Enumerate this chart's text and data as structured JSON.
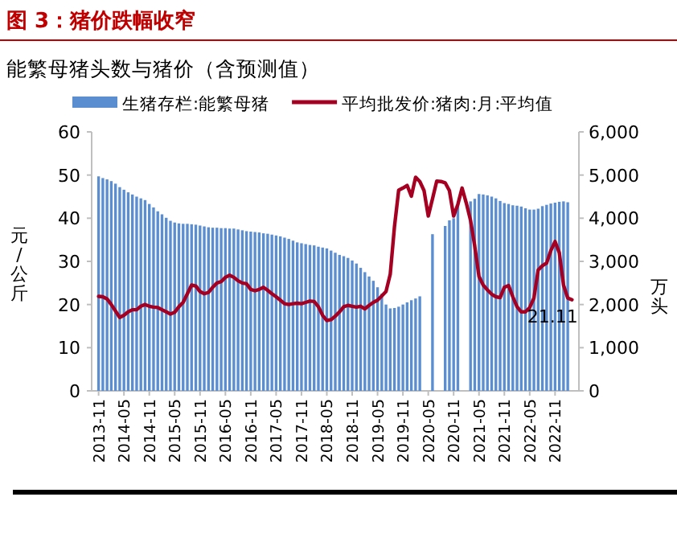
{
  "chart_data": {
    "type": "bar",
    "title": "图 3：猪价跌幅收窄",
    "subtitle": "能繁母猪头数与猪价（含预测值）",
    "ylabel": "元/公斤",
    "y2label": "万头",
    "legend": "top",
    "categories": [
      "2013-11",
      null,
      null,
      null,
      null,
      null,
      "2014-05",
      null,
      null,
      null,
      null,
      null,
      "2014-11",
      null,
      null,
      null,
      null,
      null,
      "2015-05",
      null,
      null,
      null,
      null,
      null,
      "2015-11",
      null,
      null,
      null,
      null,
      null,
      "2016-05",
      null,
      null,
      null,
      null,
      null,
      "2016-11",
      null,
      null,
      null,
      null,
      null,
      "2017-05",
      null,
      null,
      null,
      null,
      null,
      "2017-11",
      null,
      null,
      null,
      null,
      null,
      "2018-05",
      null,
      null,
      null,
      null,
      null,
      "2018-11",
      null,
      null,
      null,
      null,
      null,
      "2019-05",
      null,
      null,
      null,
      null,
      null,
      "2019-11",
      null,
      null,
      null,
      null,
      null,
      "2020-05",
      null,
      null,
      null,
      null,
      null,
      "2020-11",
      null,
      null,
      null,
      null,
      null,
      "2021-05",
      null,
      null,
      null,
      null,
      null,
      "2021-11",
      null,
      null,
      null,
      null,
      null,
      "2022-05",
      null,
      null,
      null,
      null,
      null,
      "2022-11",
      null,
      null,
      null,
      null
    ],
    "ylim": [
      0,
      60
    ],
    "yticks": [
      0,
      10,
      20,
      30,
      40,
      50,
      60
    ],
    "y2lim": [
      0,
      6000
    ],
    "y2ticks": [
      0,
      {
        "value": 1000,
        "label": "1,000"
      },
      {
        "value": 2000,
        "label": "2,000"
      },
      {
        "value": 3000,
        "label": "3,000"
      },
      {
        "value": 4000,
        "label": "4,000"
      },
      {
        "value": 5000,
        "label": "5,000"
      },
      {
        "value": 6000,
        "label": "6,000"
      }
    ],
    "series": [
      {
        "name": "生猪存栏:能繁母猪",
        "axis": "y2",
        "color": "#5b8ed0",
        "values": [
          4970,
          4930,
          4900,
          4860,
          4800,
          4720,
          4660,
          4600,
          4550,
          4500,
          4460,
          4420,
          4330,
          4250,
          4160,
          4090,
          4010,
          3940,
          3900,
          3880,
          3870,
          3870,
          3860,
          3850,
          3830,
          3810,
          3790,
          3780,
          3780,
          3770,
          3770,
          3760,
          3760,
          3740,
          3720,
          3700,
          3690,
          3680,
          3670,
          3650,
          3640,
          3620,
          3600,
          3580,
          3550,
          3520,
          3480,
          3440,
          3420,
          3400,
          3380,
          3370,
          3340,
          3320,
          3300,
          3250,
          3200,
          3150,
          3120,
          3080,
          3020,
          2950,
          2850,
          2750,
          2650,
          2550,
          2400,
          2250,
          2000,
          1910,
          1920,
          1950,
          2000,
          2050,
          2100,
          2140,
          2190,
          null,
          null,
          3630,
          null,
          null,
          3820,
          3950,
          4000,
          4300,
          null,
          null,
          4390,
          4450,
          4560,
          4550,
          4530,
          4500,
          4460,
          4400,
          4350,
          4330,
          4300,
          4290,
          4270,
          4230,
          4200,
          4200,
          4220,
          4280,
          4310,
          4340,
          4360,
          4380,
          4390,
          4370,
          null
        ]
      },
      {
        "name": "平均批发价:猪肉:月:平均值",
        "type": "line",
        "color": "#a50021",
        "values": [
          21.9,
          21.8,
          21.3,
          20.0,
          18.5,
          17.0,
          17.5,
          18.3,
          18.8,
          18.8,
          19.6,
          20.0,
          19.6,
          19.4,
          19.3,
          18.8,
          18.3,
          17.8,
          18.2,
          19.5,
          20.5,
          22.5,
          24.5,
          24.3,
          23.0,
          22.5,
          22.8,
          24.0,
          25.0,
          25.3,
          26.3,
          26.8,
          26.3,
          25.5,
          25.0,
          24.8,
          23.5,
          23.2,
          23.5,
          24.0,
          23.3,
          22.5,
          21.8,
          21.0,
          20.2,
          20.0,
          20.2,
          20.3,
          20.2,
          20.5,
          20.8,
          20.7,
          19.5,
          17.5,
          16.3,
          16.5,
          17.3,
          18.3,
          19.5,
          19.8,
          19.6,
          19.4,
          19.6,
          19.0,
          19.8,
          20.5,
          21.0,
          22.0,
          23.0,
          27.0,
          38.0,
          46.5,
          47.0,
          47.6,
          45.1,
          49.5,
          48.5,
          46.4,
          40.5,
          44.5,
          48.6,
          48.5,
          48.2,
          46.4,
          40.5,
          43.2,
          47.0,
          43.5,
          39.5,
          33.5,
          26.5,
          24.5,
          23.4,
          22.4,
          21.8,
          21.6,
          24.0,
          24.4,
          21.8,
          19.5,
          18.3,
          18.3,
          19.3,
          21.5,
          28.0,
          29.0,
          29.6,
          32.5,
          34.6,
          32.0,
          24.5,
          21.5,
          21.11
        ]
      }
    ],
    "annotations": [
      {
        "text": "21.11",
        "y": 21.11
      }
    ]
  }
}
